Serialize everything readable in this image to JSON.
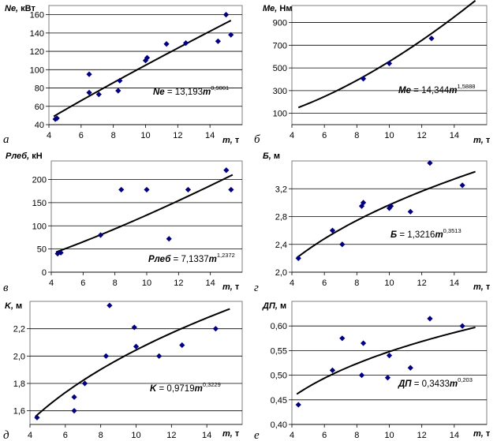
{
  "chart_data": [
    {
      "type": "scatter",
      "panel_label": "а",
      "ylabel": "Ne, кВт",
      "xlabel": "m, т",
      "xlim": [
        4,
        16
      ],
      "ylim": [
        40,
        170
      ],
      "xticks": [
        4,
        6,
        8,
        10,
        12,
        14
      ],
      "yticks": [
        40,
        60,
        80,
        100,
        120,
        140,
        160
      ],
      "ytick_labels": [
        "40",
        "60",
        "80",
        "100",
        "120",
        "140",
        "160"
      ],
      "grid": "horizontal",
      "equation": {
        "lhs": "Ne",
        "coef": "13,193",
        "var": "m",
        "exp": "0,9001"
      },
      "fit": {
        "a": 13.193,
        "b": 0.9001,
        "x_range": [
          4.3,
          15.3
        ]
      },
      "points": [
        [
          4.4,
          46
        ],
        [
          4.5,
          47
        ],
        [
          6.5,
          95
        ],
        [
          6.5,
          75
        ],
        [
          7.1,
          73
        ],
        [
          8.3,
          77
        ],
        [
          8.4,
          88
        ],
        [
          10.0,
          110
        ],
        [
          10.1,
          113
        ],
        [
          11.3,
          128
        ],
        [
          12.5,
          129
        ],
        [
          14.5,
          131
        ],
        [
          15.0,
          160
        ],
        [
          15.3,
          138
        ]
      ]
    },
    {
      "type": "scatter",
      "panel_label": "б",
      "ylabel": "Me, Нм",
      "xlabel": "m, т",
      "xlim": [
        4,
        16
      ],
      "ylim": [
        0,
        1050
      ],
      "xticks": [
        4,
        6,
        8,
        10,
        12,
        14
      ],
      "yticks": [
        100,
        300,
        500,
        700,
        900
      ],
      "ytick_labels": [
        "100",
        "300",
        "500",
        "700",
        "900"
      ],
      "grid": "horizontal",
      "equation": {
        "lhs": "Me",
        "coef": "14,344",
        "var": "m",
        "exp": "1,5888"
      },
      "fit": {
        "a": 14.344,
        "b": 1.5888,
        "x_range": [
          4.4,
          15.3
        ]
      },
      "points": [
        [
          8.4,
          405
        ],
        [
          10.0,
          540
        ],
        [
          12.6,
          760
        ]
      ]
    },
    {
      "type": "scatter",
      "panel_label": "в",
      "ylabel": "Pлеб, кН",
      "xlabel": "m, т",
      "xlim": [
        4,
        16
      ],
      "ylim": [
        0,
        240
      ],
      "xticks": [
        4,
        6,
        8,
        10,
        12,
        14
      ],
      "yticks": [
        0,
        50,
        100,
        150,
        200
      ],
      "ytick_labels": [
        "0",
        "50",
        "100",
        "150",
        "200"
      ],
      "grid": "horizontal",
      "equation": {
        "lhs": "Pлеб",
        "coef": "7,1337",
        "var": "m",
        "exp": "1,2372"
      },
      "fit": {
        "a": 7.1337,
        "b": 1.2372,
        "x_range": [
          4.3,
          15.4
        ]
      },
      "points": [
        [
          4.4,
          40
        ],
        [
          4.6,
          42
        ],
        [
          7.1,
          80
        ],
        [
          8.4,
          178
        ],
        [
          10.0,
          178
        ],
        [
          11.4,
          72
        ],
        [
          12.6,
          178
        ],
        [
          15.0,
          220
        ],
        [
          15.3,
          178
        ]
      ]
    },
    {
      "type": "scatter",
      "panel_label": "г",
      "ylabel": "Б, м",
      "xlabel": "m, т",
      "xlim": [
        4,
        16
      ],
      "ylim": [
        2.0,
        3.6
      ],
      "xticks": [
        4,
        6,
        8,
        10,
        12,
        14
      ],
      "yticks": [
        2.0,
        2.4,
        2.8,
        3.2
      ],
      "ytick_labels": [
        "2,0",
        "2,4",
        "2,8",
        "3,2"
      ],
      "grid": "horizontal",
      "equation": {
        "lhs": "Б",
        "coef": "1,3216",
        "var": "m",
        "exp": "0,3513"
      },
      "fit": {
        "a": 1.3216,
        "b": 0.3513,
        "x_range": [
          4.3,
          15.3
        ]
      },
      "points": [
        [
          4.4,
          2.2
        ],
        [
          6.5,
          2.6
        ],
        [
          7.1,
          2.4
        ],
        [
          8.3,
          2.95
        ],
        [
          8.4,
          3.0
        ],
        [
          10.0,
          2.92
        ],
        [
          10.1,
          2.95
        ],
        [
          11.3,
          2.87
        ],
        [
          12.5,
          3.57
        ],
        [
          14.5,
          3.25
        ]
      ]
    },
    {
      "type": "scatter",
      "panel_label": "д",
      "ylabel": "K, м",
      "xlabel": "m, т",
      "xlim": [
        4,
        16
      ],
      "ylim": [
        1.5,
        2.4
      ],
      "xticks": [
        4,
        6,
        8,
        10,
        12,
        14
      ],
      "yticks": [
        1.6,
        1.8,
        2.0,
        2.2
      ],
      "ytick_labels": [
        "1,6",
        "1,8",
        "2,0",
        "2,2"
      ],
      "grid": "horizontal",
      "equation": {
        "lhs": "K",
        "coef": "0,9719",
        "var": "m",
        "exp": "0,3229"
      },
      "fit": {
        "a": 0.9719,
        "b": 0.3229,
        "x_range": [
          4.3,
          15.3
        ]
      },
      "points": [
        [
          4.4,
          1.55
        ],
        [
          6.5,
          1.7
        ],
        [
          6.5,
          1.6
        ],
        [
          7.1,
          1.8
        ],
        [
          8.3,
          2.0
        ],
        [
          8.5,
          2.37
        ],
        [
          9.9,
          2.21
        ],
        [
          10.0,
          2.07
        ],
        [
          11.3,
          2.0
        ],
        [
          12.6,
          2.08
        ],
        [
          14.5,
          2.2
        ]
      ]
    },
    {
      "type": "scatter",
      "panel_label": "е",
      "ylabel": "ДП, м",
      "xlabel": "m, т",
      "xlim": [
        4,
        16
      ],
      "ylim": [
        0.4,
        0.65
      ],
      "xticks": [
        4,
        6,
        8,
        10,
        12,
        14
      ],
      "yticks": [
        0.4,
        0.45,
        0.5,
        0.55,
        0.6
      ],
      "ytick_labels": [
        "0,40",
        "0,45",
        "0,50",
        "0,55",
        "0,60"
      ],
      "grid": "horizontal",
      "equation": {
        "lhs": "ДП",
        "coef": "0,3433",
        "var": "m",
        "exp": "0,203"
      },
      "fit": {
        "a": 0.3433,
        "b": 0.203,
        "x_range": [
          4.3,
          15.3
        ]
      },
      "points": [
        [
          4.4,
          0.44
        ],
        [
          6.5,
          0.51
        ],
        [
          7.1,
          0.575
        ],
        [
          8.3,
          0.5
        ],
        [
          8.4,
          0.565
        ],
        [
          9.9,
          0.495
        ],
        [
          10.0,
          0.54
        ],
        [
          11.3,
          0.515
        ],
        [
          12.5,
          0.615
        ],
        [
          14.5,
          0.6
        ]
      ]
    }
  ]
}
